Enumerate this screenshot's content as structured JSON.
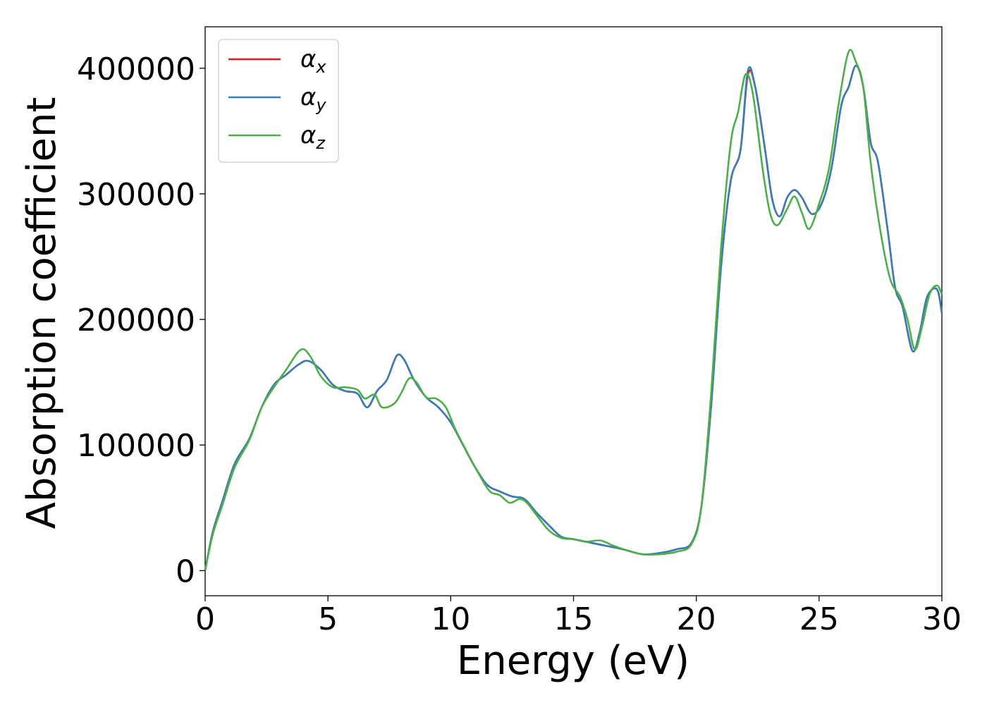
{
  "chart_data": {
    "type": "line",
    "title": "",
    "xlabel": "Energy (eV)",
    "ylabel": "Absorption coefficient",
    "xlim": [
      0,
      30
    ],
    "ylim": [
      -20000,
      433000
    ],
    "xticks": [
      0,
      5,
      10,
      15,
      20,
      25,
      30
    ],
    "yticks": [
      0,
      100000,
      200000,
      300000,
      400000
    ],
    "xtick_labels": [
      "0",
      "5",
      "10",
      "15",
      "20",
      "25",
      "30"
    ],
    "ytick_labels": [
      "0",
      "100000",
      "200000",
      "300000",
      "400000"
    ],
    "grid": false,
    "legend_position": "top-left",
    "series": [
      {
        "name": "α_x",
        "legend_base": "α",
        "legend_sub": "x",
        "color": "#e41a1c",
        "points": [
          [
            0,
            0
          ],
          [
            0.3,
            30000
          ],
          [
            0.7,
            55000
          ],
          [
            1.2,
            85000
          ],
          [
            1.8,
            105000
          ],
          [
            2.3,
            130000
          ],
          [
            2.8,
            148000
          ],
          [
            3.3,
            156000
          ],
          [
            3.8,
            164000
          ],
          [
            4.2,
            167000
          ],
          [
            4.7,
            160000
          ],
          [
            5.2,
            148000
          ],
          [
            5.7,
            143000
          ],
          [
            6.2,
            141000
          ],
          [
            6.6,
            130000
          ],
          [
            7.0,
            143000
          ],
          [
            7.4,
            152000
          ],
          [
            7.8,
            171000
          ],
          [
            8.1,
            168000
          ],
          [
            8.5,
            152000
          ],
          [
            9.0,
            138000
          ],
          [
            9.5,
            130000
          ],
          [
            10.0,
            118000
          ],
          [
            10.5,
            100000
          ],
          [
            11.0,
            82000
          ],
          [
            11.5,
            68000
          ],
          [
            12.0,
            63000
          ],
          [
            12.5,
            59000
          ],
          [
            13.0,
            57000
          ],
          [
            13.5,
            46000
          ],
          [
            14.0,
            36000
          ],
          [
            14.5,
            27000
          ],
          [
            15.0,
            25000
          ],
          [
            16.0,
            21000
          ],
          [
            17.0,
            17000
          ],
          [
            17.8,
            13000
          ],
          [
            18.5,
            14000
          ],
          [
            19.2,
            17000
          ],
          [
            19.8,
            22000
          ],
          [
            20.2,
            50000
          ],
          [
            20.6,
            130000
          ],
          [
            21.0,
            240000
          ],
          [
            21.4,
            310000
          ],
          [
            21.8,
            335000
          ],
          [
            22.1,
            395000
          ],
          [
            22.4,
            385000
          ],
          [
            22.8,
            335000
          ],
          [
            23.1,
            295000
          ],
          [
            23.4,
            282000
          ],
          [
            23.7,
            297000
          ],
          [
            24.0,
            303000
          ],
          [
            24.3,
            297000
          ],
          [
            24.7,
            284000
          ],
          [
            25.1,
            292000
          ],
          [
            25.5,
            320000
          ],
          [
            25.9,
            370000
          ],
          [
            26.2,
            385000
          ],
          [
            26.5,
            402000
          ],
          [
            26.8,
            385000
          ],
          [
            27.1,
            341000
          ],
          [
            27.4,
            325000
          ],
          [
            27.8,
            270000
          ],
          [
            28.1,
            225000
          ],
          [
            28.4,
            210000
          ],
          [
            28.8,
            175000
          ],
          [
            29.1,
            190000
          ],
          [
            29.4,
            218000
          ],
          [
            29.8,
            224000
          ],
          [
            30,
            205000
          ]
        ]
      },
      {
        "name": "α_y",
        "legend_base": "α",
        "legend_sub": "y",
        "color": "#377eb8",
        "points": [
          [
            0,
            0
          ],
          [
            0.3,
            30000
          ],
          [
            0.7,
            55000
          ],
          [
            1.2,
            85000
          ],
          [
            1.8,
            105000
          ],
          [
            2.3,
            130000
          ],
          [
            2.8,
            148000
          ],
          [
            3.3,
            156000
          ],
          [
            3.8,
            164000
          ],
          [
            4.2,
            167000
          ],
          [
            4.7,
            160000
          ],
          [
            5.2,
            148000
          ],
          [
            5.7,
            143000
          ],
          [
            6.2,
            141000
          ],
          [
            6.6,
            130000
          ],
          [
            7.0,
            143000
          ],
          [
            7.4,
            152000
          ],
          [
            7.8,
            171000
          ],
          [
            8.1,
            168000
          ],
          [
            8.5,
            152000
          ],
          [
            9.0,
            138000
          ],
          [
            9.5,
            130000
          ],
          [
            10.0,
            118000
          ],
          [
            10.5,
            100000
          ],
          [
            11.0,
            82000
          ],
          [
            11.5,
            68000
          ],
          [
            12.0,
            63000
          ],
          [
            12.5,
            59000
          ],
          [
            13.0,
            57000
          ],
          [
            13.5,
            46000
          ],
          [
            14.0,
            36000
          ],
          [
            14.5,
            27000
          ],
          [
            15.0,
            25000
          ],
          [
            16.0,
            21000
          ],
          [
            17.0,
            17000
          ],
          [
            17.8,
            13000
          ],
          [
            18.5,
            14000
          ],
          [
            19.2,
            17000
          ],
          [
            19.8,
            22000
          ],
          [
            20.2,
            50000
          ],
          [
            20.6,
            130000
          ],
          [
            21.0,
            240000
          ],
          [
            21.4,
            310000
          ],
          [
            21.8,
            335000
          ],
          [
            22.1,
            398000
          ],
          [
            22.4,
            385000
          ],
          [
            22.8,
            335000
          ],
          [
            23.1,
            295000
          ],
          [
            23.4,
            282000
          ],
          [
            23.7,
            297000
          ],
          [
            24.0,
            303000
          ],
          [
            24.3,
            297000
          ],
          [
            24.7,
            284000
          ],
          [
            25.1,
            292000
          ],
          [
            25.5,
            320000
          ],
          [
            25.9,
            370000
          ],
          [
            26.2,
            385000
          ],
          [
            26.5,
            402000
          ],
          [
            26.8,
            385000
          ],
          [
            27.1,
            341000
          ],
          [
            27.4,
            325000
          ],
          [
            27.8,
            270000
          ],
          [
            28.1,
            225000
          ],
          [
            28.4,
            210000
          ],
          [
            28.8,
            175000
          ],
          [
            29.1,
            190000
          ],
          [
            29.4,
            218000
          ],
          [
            29.8,
            224000
          ],
          [
            30,
            205000
          ]
        ]
      },
      {
        "name": "α_z",
        "legend_base": "α",
        "legend_sub": "z",
        "color": "#4daf4a",
        "points": [
          [
            0,
            0
          ],
          [
            0.3,
            28000
          ],
          [
            0.7,
            52000
          ],
          [
            1.2,
            82000
          ],
          [
            1.8,
            104000
          ],
          [
            2.3,
            130000
          ],
          [
            2.8,
            146000
          ],
          [
            3.3,
            160000
          ],
          [
            3.9,
            176000
          ],
          [
            4.3,
            170000
          ],
          [
            4.7,
            155000
          ],
          [
            5.2,
            146000
          ],
          [
            5.7,
            146000
          ],
          [
            6.2,
            144000
          ],
          [
            6.5,
            137000
          ],
          [
            6.9,
            140000
          ],
          [
            7.2,
            130000
          ],
          [
            7.7,
            133000
          ],
          [
            8.0,
            142000
          ],
          [
            8.3,
            153000
          ],
          [
            8.6,
            150000
          ],
          [
            9.0,
            138000
          ],
          [
            9.4,
            137000
          ],
          [
            9.8,
            130000
          ],
          [
            10.2,
            112000
          ],
          [
            10.7,
            93000
          ],
          [
            11.2,
            75000
          ],
          [
            11.6,
            63000
          ],
          [
            12.0,
            60000
          ],
          [
            12.4,
            54000
          ],
          [
            12.8,
            57000
          ],
          [
            13.1,
            54000
          ],
          [
            13.5,
            44000
          ],
          [
            14.0,
            32000
          ],
          [
            14.5,
            26000
          ],
          [
            15.0,
            25000
          ],
          [
            15.5,
            23000
          ],
          [
            16.1,
            24000
          ],
          [
            16.6,
            20000
          ],
          [
            17.2,
            16000
          ],
          [
            17.8,
            13000
          ],
          [
            18.5,
            13000
          ],
          [
            19.2,
            15000
          ],
          [
            19.8,
            21000
          ],
          [
            20.2,
            50000
          ],
          [
            20.6,
            140000
          ],
          [
            21.0,
            255000
          ],
          [
            21.4,
            340000
          ],
          [
            21.7,
            365000
          ],
          [
            22.0,
            395000
          ],
          [
            22.3,
            380000
          ],
          [
            22.7,
            320000
          ],
          [
            23.0,
            285000
          ],
          [
            23.3,
            275000
          ],
          [
            23.7,
            288000
          ],
          [
            24.0,
            298000
          ],
          [
            24.3,
            285000
          ],
          [
            24.6,
            272000
          ],
          [
            25.0,
            292000
          ],
          [
            25.4,
            320000
          ],
          [
            25.8,
            372000
          ],
          [
            26.2,
            413000
          ],
          [
            26.5,
            405000
          ],
          [
            26.8,
            385000
          ],
          [
            27.1,
            325000
          ],
          [
            27.5,
            270000
          ],
          [
            27.9,
            232000
          ],
          [
            28.3,
            218000
          ],
          [
            28.6,
            200000
          ],
          [
            28.9,
            176000
          ],
          [
            29.2,
            195000
          ],
          [
            29.5,
            220000
          ],
          [
            29.8,
            227000
          ],
          [
            30,
            220000
          ]
        ]
      }
    ]
  }
}
